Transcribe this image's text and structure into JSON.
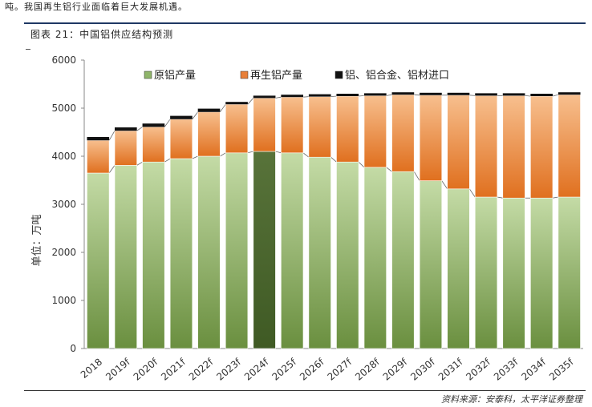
{
  "header": {
    "top_text": "吨。我国再生铝行业面临着巨大发展机遇。",
    "figure_title": "图表 21：中国铝供应结构预测",
    "source": "资料来源：安泰科，太平洋证券整理"
  },
  "colors": {
    "primary": "#8fb56a",
    "primary_highlight": "#4f6a2e",
    "recycled": "#e8803a",
    "imports": "#111111",
    "border": "#1f3864"
  },
  "chart_data": {
    "type": "bar",
    "stacked": true,
    "categories": [
      "2018",
      "2019f",
      "2020f",
      "2021f",
      "2022f",
      "2023f",
      "2024f",
      "2025f",
      "2026f",
      "2027f",
      "2028f",
      "2029f",
      "2030f",
      "2031f",
      "2032f",
      "2033f",
      "2034f",
      "2035f"
    ],
    "series": [
      {
        "name": "原铝产量",
        "values": [
          3650,
          3810,
          3880,
          3950,
          4000,
          4070,
          4100,
          4070,
          3980,
          3880,
          3770,
          3680,
          3490,
          3320,
          3150,
          3130,
          3130,
          3150
        ]
      },
      {
        "name": "再生铝产量",
        "values": [
          680,
          720,
          730,
          820,
          920,
          1010,
          1110,
          1160,
          1260,
          1370,
          1490,
          1600,
          1780,
          1950,
          2110,
          2130,
          2120,
          2130
        ]
      },
      {
        "name": "铝、铝合金、铝材进口",
        "values": [
          70,
          70,
          70,
          70,
          70,
          50,
          50,
          50,
          50,
          50,
          50,
          50,
          50,
          50,
          50,
          50,
          50,
          50
        ]
      }
    ],
    "highlight_index": 6,
    "ylabel": "单位：万吨",
    "ylim": [
      0,
      6000
    ],
    "yticks": [
      0,
      1000,
      2000,
      3000,
      4000,
      5000,
      6000
    ],
    "legend_position": "top",
    "grid": false
  }
}
